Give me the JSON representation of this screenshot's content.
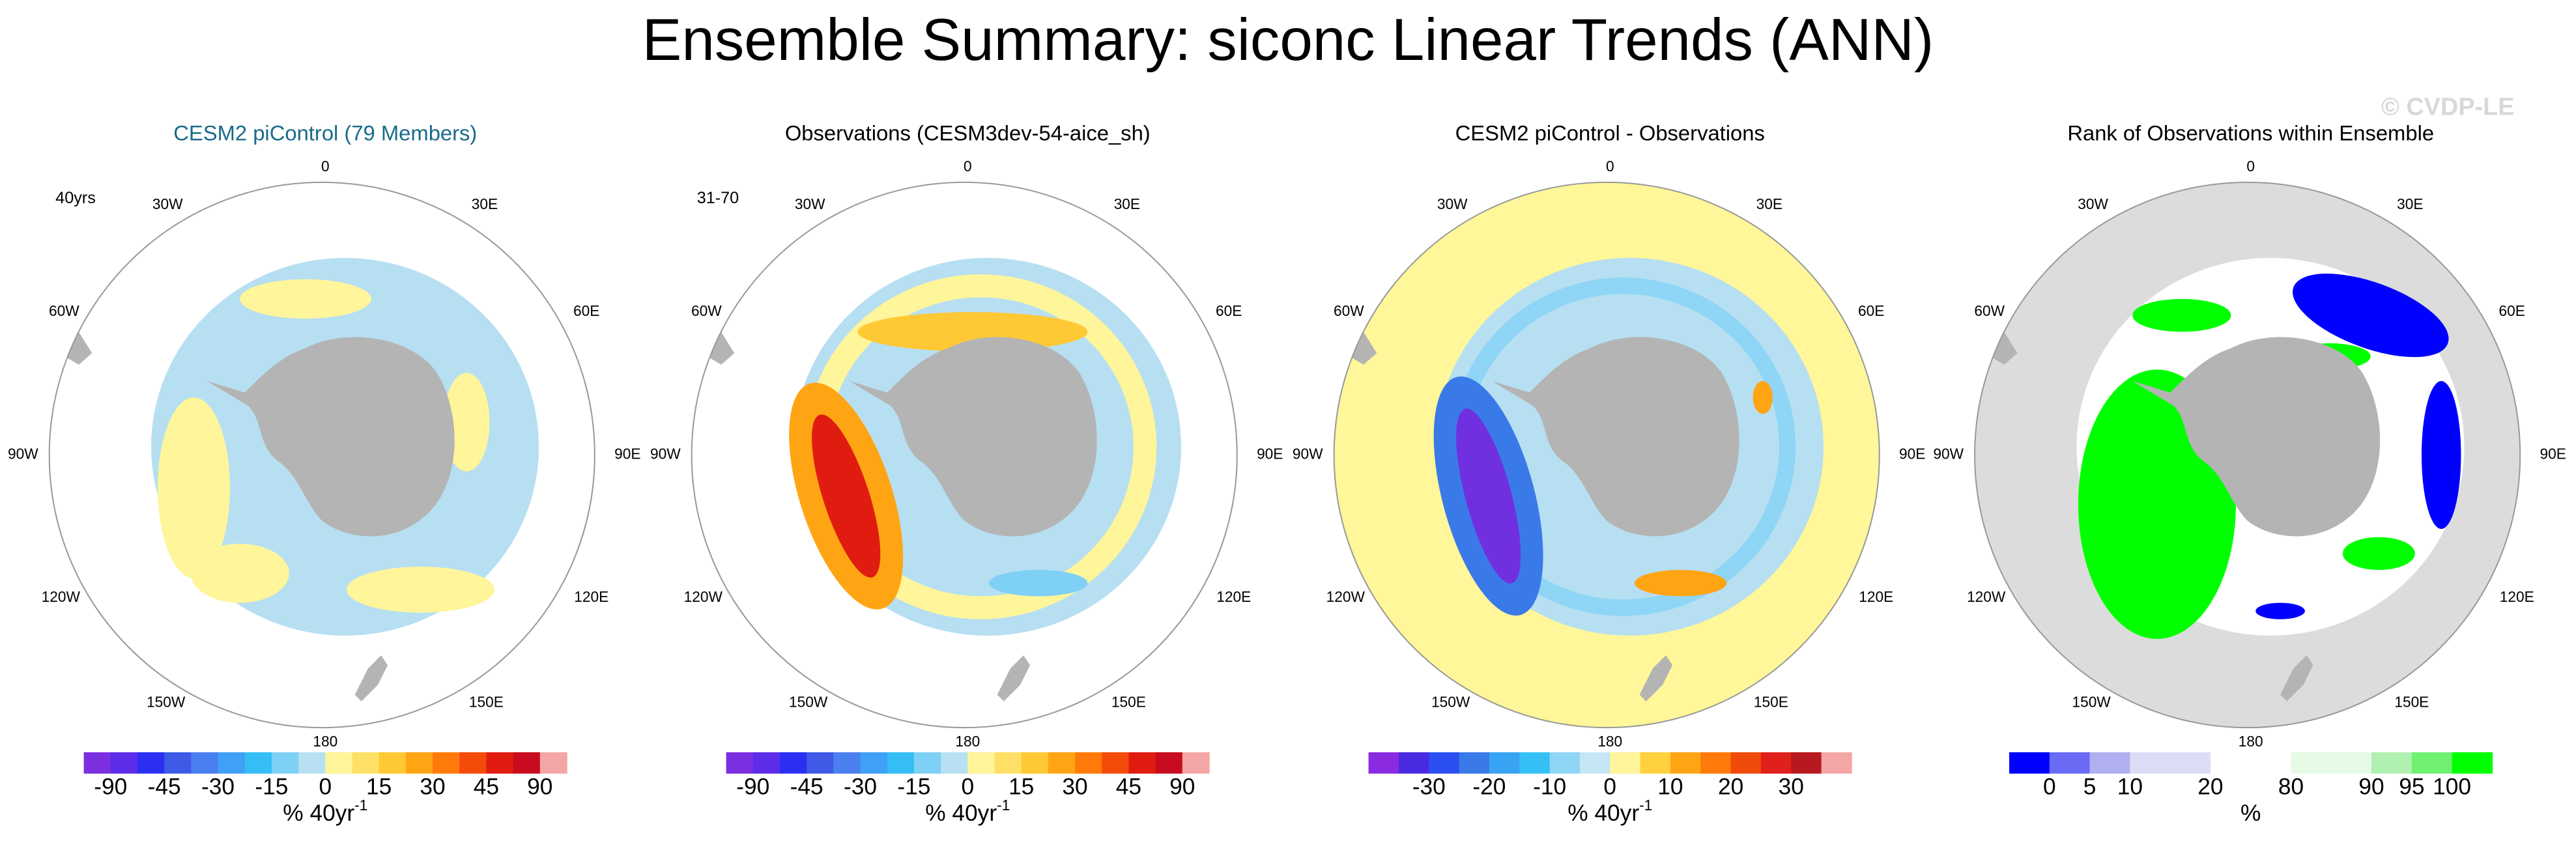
{
  "header": {
    "title": "Ensemble Summary: siconc Linear Trends (ANN)",
    "watermark": "© CVDP-LE"
  },
  "panels": [
    {
      "title": "CESM2 piControl (79 Members)",
      "title_color": "#1a6b8a",
      "corner_label": "40yrs",
      "longitudes": [
        "0",
        "30E",
        "60E",
        "90E",
        "120E",
        "150E",
        "180",
        "150W",
        "120W",
        "90W",
        "60W",
        "30W"
      ],
      "colorbar": {
        "colors": [
          "#7b2fe0",
          "#5c2ce8",
          "#2b2ff2",
          "#3e5ae6",
          "#4a7ff0",
          "#3fa0f5",
          "#35bdf5",
          "#7ed0f5",
          "#b7e0f2",
          "#fff59a",
          "#ffe066",
          "#ffc835",
          "#ffa514",
          "#ff7a0a",
          "#f54b0a",
          "#e01c10",
          "#c80b1e",
          "#f4a5a5"
        ],
        "labels": [
          -90,
          -45,
          -30,
          -15,
          0,
          15,
          30,
          45,
          90
        ],
        "units": "% 40yr",
        "units_sup": "-1"
      }
    },
    {
      "title": "Observations (CESM3dev-54-aice_sh)",
      "title_color": "#000000",
      "corner_label": "31-70",
      "longitudes": [
        "0",
        "30E",
        "60E",
        "90E",
        "120E",
        "150E",
        "180",
        "150W",
        "120W",
        "90W",
        "60W",
        "30W"
      ],
      "colorbar": {
        "colors": [
          "#7b2fe0",
          "#5c2ce8",
          "#2b2ff2",
          "#3e5ae6",
          "#4a7ff0",
          "#3fa0f5",
          "#35bdf5",
          "#7ed0f5",
          "#b7e0f2",
          "#fff59a",
          "#ffe066",
          "#ffc835",
          "#ffa514",
          "#ff7a0a",
          "#f54b0a",
          "#e01c10",
          "#c80b1e",
          "#f4a5a5"
        ],
        "labels": [
          -90,
          -45,
          -30,
          -15,
          0,
          15,
          30,
          45,
          90
        ],
        "units": "% 40yr",
        "units_sup": "-1"
      }
    },
    {
      "title": "CESM2 piControl - Observations",
      "title_color": "#000000",
      "longitudes": [
        "0",
        "30E",
        "60E",
        "90E",
        "120E",
        "150E",
        "180",
        "150W",
        "120W",
        "90W",
        "60W",
        "30W"
      ],
      "colorbar": {
        "colors": [
          "#8a2be2",
          "#4a2ae0",
          "#2b4ff2",
          "#3a7ae8",
          "#38a3f2",
          "#35c0f5",
          "#8fd5f5",
          "#c5e6f5",
          "#fff59a",
          "#ffd040",
          "#ffa514",
          "#ff7a0a",
          "#f04a0a",
          "#e0201a",
          "#b81820",
          "#f4a5a5"
        ],
        "labels": [
          -30,
          -20,
          -10,
          0,
          10,
          20,
          30
        ],
        "units": "% 40yr",
        "units_sup": "-1"
      }
    },
    {
      "title": "Rank of Observations within Ensemble",
      "title_color": "#000000",
      "longitudes": [
        "0",
        "30E",
        "60E",
        "90E",
        "120E",
        "150E",
        "180",
        "150W",
        "120W",
        "90W",
        "60W",
        "30W"
      ],
      "colorbar": {
        "colors": [
          "#0000ff",
          "#6a6af5",
          "#b0b0f0",
          "#dcdcf5",
          "#dcdcf5",
          "#ffffff",
          "#ffffff",
          "#e6fbe6",
          "#e6fbe6",
          "#b0f0b0",
          "#70f070",
          "#00ff00"
        ],
        "labels": [
          0,
          5,
          10,
          20,
          80,
          90,
          95,
          100
        ],
        "units": "%"
      }
    }
  ]
}
